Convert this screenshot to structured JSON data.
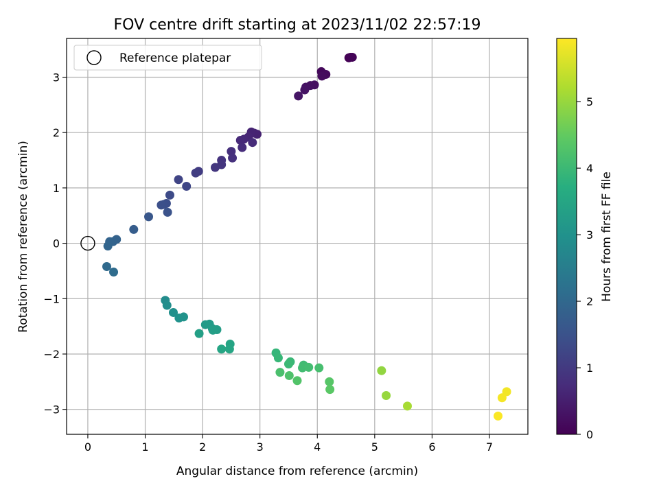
{
  "chart_data": {
    "type": "scatter",
    "title": "FOV centre drift starting at 2023/11/02 22:57:19",
    "xlabel": "Angular distance from reference (arcmin)",
    "ylabel": "Rotation from reference (arcmin)",
    "xlim": [
      -0.37,
      7.67
    ],
    "ylim": [
      -3.45,
      3.7
    ],
    "xticks": [
      {
        "value": 0,
        "label": "0"
      },
      {
        "value": 1,
        "label": "1"
      },
      {
        "value": 2,
        "label": "2"
      },
      {
        "value": 3,
        "label": "3"
      },
      {
        "value": 4,
        "label": "4"
      },
      {
        "value": 5,
        "label": "5"
      },
      {
        "value": 6,
        "label": "6"
      },
      {
        "value": 7,
        "label": "7"
      }
    ],
    "yticks": [
      {
        "value": -3,
        "label": "−3"
      },
      {
        "value": -2,
        "label": "−2"
      },
      {
        "value": -1,
        "label": "−1"
      },
      {
        "value": 0,
        "label": "0"
      },
      {
        "value": 1,
        "label": "1"
      },
      {
        "value": 2,
        "label": "2"
      },
      {
        "value": 3,
        "label": "3"
      }
    ],
    "grid": true,
    "legend": {
      "placement": "top-left",
      "entries": [
        {
          "label": "Reference platepar",
          "marker": "open-circle"
        }
      ]
    },
    "reference_point": {
      "x": 0,
      "y": 0
    },
    "colorbar": {
      "label": "Hours from first FF file",
      "range": [
        0,
        5.95
      ],
      "colormap": "viridis",
      "ticks": [
        {
          "value": 0,
          "label": "0"
        },
        {
          "value": 1,
          "label": "1"
        },
        {
          "value": 2,
          "label": "2"
        },
        {
          "value": 3,
          "label": "3"
        },
        {
          "value": 4,
          "label": "4"
        },
        {
          "value": 5,
          "label": "5"
        }
      ]
    },
    "points": [
      {
        "x": 4.55,
        "y": 3.35,
        "hours": 0.0
      },
      {
        "x": 4.58,
        "y": 3.36,
        "hours": 0.03
      },
      {
        "x": 4.61,
        "y": 3.36,
        "hours": 0.05
      },
      {
        "x": 4.07,
        "y": 3.1,
        "hours": 0.12
      },
      {
        "x": 4.15,
        "y": 3.05,
        "hours": 0.15
      },
      {
        "x": 4.08,
        "y": 3.02,
        "hours": 0.18
      },
      {
        "x": 3.95,
        "y": 2.86,
        "hours": 0.22
      },
      {
        "x": 3.88,
        "y": 2.85,
        "hours": 0.25
      },
      {
        "x": 3.8,
        "y": 2.82,
        "hours": 0.28
      },
      {
        "x": 3.78,
        "y": 2.77,
        "hours": 0.3
      },
      {
        "x": 3.67,
        "y": 2.66,
        "hours": 0.33
      },
      {
        "x": 2.95,
        "y": 1.97,
        "hours": 0.55
      },
      {
        "x": 2.9,
        "y": 1.99,
        "hours": 0.58
      },
      {
        "x": 2.85,
        "y": 2.01,
        "hours": 0.6
      },
      {
        "x": 2.8,
        "y": 1.92,
        "hours": 0.63
      },
      {
        "x": 2.72,
        "y": 1.88,
        "hours": 0.66
      },
      {
        "x": 2.66,
        "y": 1.86,
        "hours": 0.7
      },
      {
        "x": 2.87,
        "y": 1.82,
        "hours": 0.72
      },
      {
        "x": 2.69,
        "y": 1.73,
        "hours": 0.75
      },
      {
        "x": 2.5,
        "y": 1.66,
        "hours": 0.8
      },
      {
        "x": 2.52,
        "y": 1.54,
        "hours": 0.83
      },
      {
        "x": 2.33,
        "y": 1.5,
        "hours": 0.86
      },
      {
        "x": 2.33,
        "y": 1.42,
        "hours": 0.9
      },
      {
        "x": 2.22,
        "y": 1.37,
        "hours": 0.95
      },
      {
        "x": 1.93,
        "y": 1.3,
        "hours": 1.05
      },
      {
        "x": 1.88,
        "y": 1.27,
        "hours": 1.08
      },
      {
        "x": 1.58,
        "y": 1.15,
        "hours": 1.2
      },
      {
        "x": 1.72,
        "y": 1.03,
        "hours": 1.25
      },
      {
        "x": 1.43,
        "y": 0.87,
        "hours": 1.35
      },
      {
        "x": 1.37,
        "y": 0.72,
        "hours": 1.4
      },
      {
        "x": 1.32,
        "y": 0.7,
        "hours": 1.42
      },
      {
        "x": 1.28,
        "y": 0.69,
        "hours": 1.45
      },
      {
        "x": 1.39,
        "y": 0.56,
        "hours": 1.5
      },
      {
        "x": 1.06,
        "y": 0.48,
        "hours": 1.6
      },
      {
        "x": 0.8,
        "y": 0.25,
        "hours": 1.75
      },
      {
        "x": 0.5,
        "y": 0.07,
        "hours": 1.85
      },
      {
        "x": 0.44,
        "y": 0.03,
        "hours": 1.88
      },
      {
        "x": 0.38,
        "y": 0.03,
        "hours": 1.9
      },
      {
        "x": 0.35,
        "y": -0.05,
        "hours": 1.92
      },
      {
        "x": 0.33,
        "y": -0.42,
        "hours": 2.05
      },
      {
        "x": 0.45,
        "y": -0.52,
        "hours": 2.1
      },
      {
        "x": 1.35,
        "y": -1.03,
        "hours": 2.85
      },
      {
        "x": 1.38,
        "y": -1.12,
        "hours": 2.9
      },
      {
        "x": 1.49,
        "y": -1.25,
        "hours": 2.95
      },
      {
        "x": 1.59,
        "y": -1.35,
        "hours": 3.0
      },
      {
        "x": 1.67,
        "y": -1.33,
        "hours": 3.03
      },
      {
        "x": 2.05,
        "y": -1.47,
        "hours": 3.2
      },
      {
        "x": 2.12,
        "y": -1.46,
        "hours": 3.22
      },
      {
        "x": 2.17,
        "y": -1.54,
        "hours": 3.25
      },
      {
        "x": 2.25,
        "y": -1.56,
        "hours": 3.28
      },
      {
        "x": 2.18,
        "y": -1.57,
        "hours": 3.3
      },
      {
        "x": 1.94,
        "y": -1.63,
        "hours": 3.33
      },
      {
        "x": 2.48,
        "y": -1.82,
        "hours": 3.45
      },
      {
        "x": 2.33,
        "y": -1.91,
        "hours": 3.48
      },
      {
        "x": 2.47,
        "y": -1.91,
        "hours": 3.5
      },
      {
        "x": 3.28,
        "y": -1.98,
        "hours": 3.9
      },
      {
        "x": 3.32,
        "y": -2.07,
        "hours": 3.93
      },
      {
        "x": 3.53,
        "y": -2.14,
        "hours": 3.97
      },
      {
        "x": 3.5,
        "y": -2.18,
        "hours": 4.0
      },
      {
        "x": 3.76,
        "y": -2.2,
        "hours": 4.05
      },
      {
        "x": 3.74,
        "y": -2.25,
        "hours": 4.08
      },
      {
        "x": 3.85,
        "y": -2.24,
        "hours": 4.1
      },
      {
        "x": 4.03,
        "y": -2.25,
        "hours": 4.15
      },
      {
        "x": 3.35,
        "y": -2.33,
        "hours": 4.2
      },
      {
        "x": 3.51,
        "y": -2.39,
        "hours": 4.25
      },
      {
        "x": 3.65,
        "y": -2.48,
        "hours": 4.3
      },
      {
        "x": 4.21,
        "y": -2.5,
        "hours": 4.35
      },
      {
        "x": 4.22,
        "y": -2.64,
        "hours": 4.4
      },
      {
        "x": 5.12,
        "y": -2.3,
        "hours": 4.95
      },
      {
        "x": 5.2,
        "y": -2.75,
        "hours": 5.0
      },
      {
        "x": 5.57,
        "y": -2.94,
        "hours": 5.15
      },
      {
        "x": 7.3,
        "y": -2.68,
        "hours": 5.85
      },
      {
        "x": 7.22,
        "y": -2.79,
        "hours": 5.88
      },
      {
        "x": 7.15,
        "y": -3.12,
        "hours": 5.92
      }
    ]
  }
}
